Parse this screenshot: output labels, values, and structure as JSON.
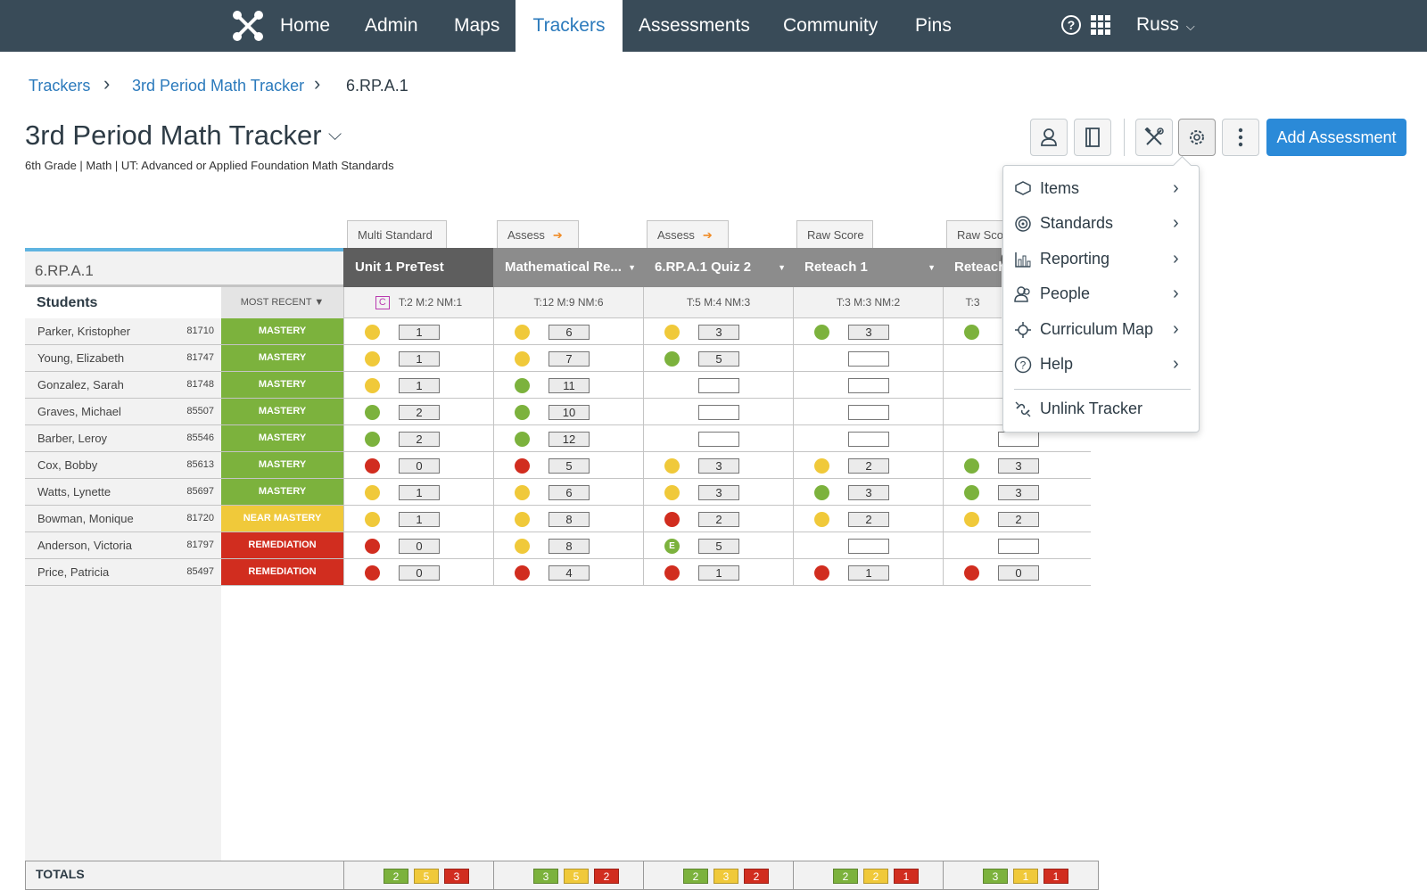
{
  "nav": {
    "items": [
      "Home",
      "Admin",
      "Maps",
      "Trackers",
      "Assessments",
      "Community",
      "Pins"
    ],
    "active": "Trackers",
    "help_glyph": "?",
    "user": "Russ",
    "user_chevron": "⌵"
  },
  "breadcrumb": {
    "items": [
      "Trackers",
      "3rd Period Math Tracker",
      "6.RP.A.1"
    ],
    "separator": "›"
  },
  "tracker": {
    "title": "3rd Period Math Tracker",
    "title_chevron": "⌵",
    "subtitle": "6th Grade  |  Math  |  UT: Advanced or Applied Foundation Math Standards"
  },
  "toolbar": {
    "add_assessment": "Add Assessment",
    "icons": [
      "student-icon",
      "notebook-icon",
      "tools-icon",
      "settings-icon",
      "more-icon"
    ]
  },
  "settings_menu": {
    "items": [
      {
        "label": "Items",
        "icon": "items-icon"
      },
      {
        "label": "Standards",
        "icon": "standards-icon"
      },
      {
        "label": "Reporting",
        "icon": "reporting-icon",
        "highlighted": true
      },
      {
        "label": "People",
        "icon": "people-icon"
      },
      {
        "label": "Curriculum Map",
        "icon": "curriculum-map-icon"
      },
      {
        "label": "Help",
        "icon": "help-icon"
      }
    ],
    "unlink": "Unlink Tracker",
    "arrow": "›"
  },
  "grid": {
    "standard": "6.RP.A.1",
    "students_label": "Students",
    "most_recent_label": "MOST RECENT ▼",
    "columns": [
      {
        "tag": "Multi Standard",
        "name": "Unit 1 PreTest",
        "stats": "T:2  M:2  NM:1",
        "badge": "C",
        "header_color": "#5e5e5e"
      },
      {
        "tag": "Assess",
        "name": "Mathematical Re...",
        "stats": "T:12  M:9  NM:6",
        "header_color": "#8c8c8c"
      },
      {
        "tag": "Assess",
        "name": "6.RP.A.1 Quiz 2",
        "stats": "T:5  M:4  NM:3",
        "header_color": "#8c8c8c"
      },
      {
        "tag": "Raw Score",
        "name": "Reteach 1",
        "stats": "T:3  M:3  NM:2",
        "header_color": "#8c8c8c"
      },
      {
        "tag": "Raw Score",
        "name": "Reteach",
        "stats": "T:3",
        "header_color": "#8c8c8c"
      }
    ],
    "status_colors": {
      "MASTERY": "#7cb23d",
      "NEAR MASTERY": "#f0c93a",
      "REMEDIATION": "#d12d1f"
    },
    "dot_colors": {
      "y": "#f0c93a",
      "g": "#7cb23d",
      "r": "#d12d1f"
    },
    "rows": [
      {
        "name": "Parker, Kristopher",
        "id": "81710",
        "status": "MASTERY",
        "cells": [
          [
            "y",
            "1"
          ],
          [
            "y",
            "6"
          ],
          [
            "y",
            "3"
          ],
          [
            "g",
            "3"
          ],
          [
            "g",
            ""
          ]
        ]
      },
      {
        "name": "Young, Elizabeth",
        "id": "81747",
        "status": "MASTERY",
        "cells": [
          [
            "y",
            "1"
          ],
          [
            "y",
            "7"
          ],
          [
            "g",
            "5"
          ],
          [
            "",
            "e"
          ],
          null
        ]
      },
      {
        "name": "Gonzalez, Sarah",
        "id": "81748",
        "status": "MASTERY",
        "cells": [
          [
            "y",
            "1"
          ],
          [
            "g",
            "11"
          ],
          [
            "",
            "e"
          ],
          [
            "",
            "e"
          ],
          null
        ]
      },
      {
        "name": "Graves, Michael",
        "id": "85507",
        "status": "MASTERY",
        "cells": [
          [
            "g",
            "2"
          ],
          [
            "g",
            "10"
          ],
          [
            "",
            "e"
          ],
          [
            "",
            "e"
          ],
          null
        ]
      },
      {
        "name": "Barber, Leroy",
        "id": "85546",
        "status": "MASTERY",
        "cells": [
          [
            "g",
            "2"
          ],
          [
            "g",
            "12"
          ],
          [
            "",
            "e"
          ],
          [
            "",
            "e"
          ],
          [
            "",
            "e"
          ]
        ]
      },
      {
        "name": "Cox, Bobby",
        "id": "85613",
        "status": "MASTERY",
        "cells": [
          [
            "r",
            "0"
          ],
          [
            "r",
            "5"
          ],
          [
            "y",
            "3"
          ],
          [
            "y",
            "2"
          ],
          [
            "g",
            "3"
          ]
        ]
      },
      {
        "name": "Watts, Lynette",
        "id": "85697",
        "status": "MASTERY",
        "cells": [
          [
            "y",
            "1"
          ],
          [
            "y",
            "6"
          ],
          [
            "y",
            "3"
          ],
          [
            "g",
            "3"
          ],
          [
            "g",
            "3"
          ]
        ]
      },
      {
        "name": "Bowman, Monique",
        "id": "81720",
        "status": "NEAR MASTERY",
        "cells": [
          [
            "y",
            "1"
          ],
          [
            "y",
            "8"
          ],
          [
            "r",
            "2"
          ],
          [
            "y",
            "2"
          ],
          [
            "y",
            "2"
          ]
        ]
      },
      {
        "name": "Anderson, Victoria",
        "id": "81797",
        "status": "REMEDIATION",
        "cells": [
          [
            "r",
            "0"
          ],
          [
            "y",
            "8"
          ],
          [
            "E",
            "5"
          ],
          [
            "",
            "e"
          ],
          [
            "",
            "e"
          ]
        ]
      },
      {
        "name": "Price, Patricia",
        "id": "85497",
        "status": "REMEDIATION",
        "cells": [
          [
            "r",
            "0"
          ],
          [
            "r",
            "4"
          ],
          [
            "r",
            "1"
          ],
          [
            "r",
            "1"
          ],
          [
            "r",
            "0"
          ]
        ]
      }
    ],
    "totals_label": "TOTALS",
    "totals": [
      [
        "2",
        "5",
        "3"
      ],
      [
        "3",
        "5",
        "2"
      ],
      [
        "2",
        "3",
        "2"
      ],
      [
        "2",
        "2",
        "1"
      ],
      [
        "3",
        "1",
        "1"
      ]
    ]
  }
}
